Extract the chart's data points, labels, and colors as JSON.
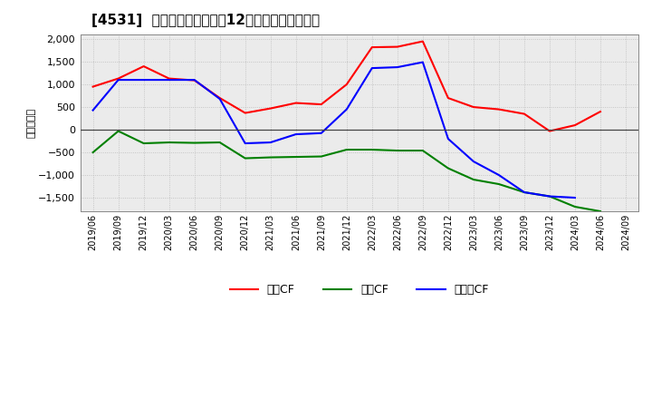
{
  "title": "[4531]  キャッシュフローの12か月移動合計の推移",
  "ylabel": "（百万円）",
  "x_labels": [
    "2019/06",
    "2019/09",
    "2019/12",
    "2020/03",
    "2020/06",
    "2020/09",
    "2020/12",
    "2021/03",
    "2021/06",
    "2021/09",
    "2021/12",
    "2022/03",
    "2022/06",
    "2022/09",
    "2022/12",
    "2023/03",
    "2023/06",
    "2023/09",
    "2023/12",
    "2024/03",
    "2024/06",
    "2024/09"
  ],
  "operating_cf": [
    950,
    1130,
    1400,
    1130,
    1090,
    700,
    370,
    470,
    590,
    560,
    1000,
    1820,
    1830,
    1950,
    700,
    500,
    450,
    350,
    -30,
    100,
    400,
    null
  ],
  "investing_cf": [
    -500,
    -30,
    -300,
    -280,
    -290,
    -280,
    -630,
    -610,
    -600,
    -590,
    -440,
    -440,
    -460,
    -460,
    -850,
    -1100,
    -1200,
    -1380,
    -1470,
    -1700,
    -1800,
    null
  ],
  "free_cf": [
    430,
    1100,
    1100,
    1100,
    1100,
    680,
    -300,
    -280,
    -100,
    -75,
    450,
    1360,
    1380,
    1490,
    -200,
    -700,
    -1000,
    -1380,
    -1470,
    -1500,
    null,
    null
  ],
  "ylim": [
    -1800,
    2100
  ],
  "yticks": [
    -1500,
    -1000,
    -500,
    0,
    500,
    1000,
    1500,
    2000
  ],
  "line_colors": {
    "operating": "#ff0000",
    "investing": "#008000",
    "free": "#0000ff"
  },
  "legend_labels": [
    "営業CF",
    "投資CF",
    "フリーCF"
  ],
  "background_color": "#ffffff",
  "grid_color": "#bbbbbb",
  "plot_bg_color": "#ebebeb"
}
